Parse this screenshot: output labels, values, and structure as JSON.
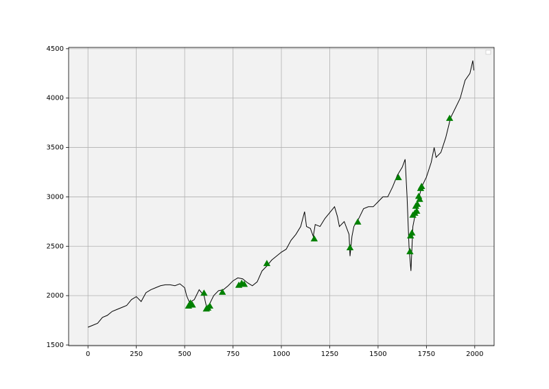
{
  "chart_data": {
    "type": "line",
    "xlim": [
      -100,
      2100
    ],
    "ylim": [
      1493,
      4513
    ],
    "xticks": [
      0,
      250,
      500,
      750,
      1000,
      1250,
      1500,
      1750,
      2000
    ],
    "yticks": [
      1500,
      2000,
      2500,
      3000,
      3500,
      4000,
      4500
    ],
    "grid": true,
    "series": [
      {
        "color": "#000000",
        "x": [
          0,
          25,
          50,
          75,
          100,
          125,
          150,
          175,
          200,
          225,
          250,
          275,
          300,
          325,
          350,
          375,
          400,
          425,
          450,
          475,
          500,
          510,
          525,
          550,
          575,
          600,
          615,
          625,
          650,
          675,
          700,
          725,
          750,
          775,
          800,
          825,
          850,
          875,
          900,
          925,
          950,
          975,
          1000,
          1025,
          1050,
          1075,
          1100,
          1120,
          1130,
          1150,
          1165,
          1175,
          1200,
          1225,
          1250,
          1275,
          1290,
          1300,
          1325,
          1350,
          1355,
          1365,
          1375,
          1400,
          1425,
          1450,
          1475,
          1500,
          1525,
          1550,
          1575,
          1600,
          1625,
          1640,
          1650,
          1660,
          1670,
          1680,
          1700,
          1725,
          1750,
          1775,
          1790,
          1800,
          1825,
          1850,
          1875,
          1900,
          1925,
          1950,
          1975,
          1990,
          1995
        ],
        "values": [
          1680,
          1700,
          1720,
          1780,
          1800,
          1840,
          1860,
          1880,
          1900,
          1960,
          1990,
          1940,
          2030,
          2060,
          2080,
          2100,
          2110,
          2110,
          2100,
          2120,
          2080,
          2000,
          1930,
          1960,
          2060,
          2000,
          1870,
          1900,
          2000,
          2050,
          2060,
          2100,
          2150,
          2180,
          2170,
          2130,
          2100,
          2140,
          2250,
          2300,
          2360,
          2400,
          2440,
          2470,
          2560,
          2620,
          2700,
          2850,
          2700,
          2680,
          2600,
          2720,
          2700,
          2780,
          2840,
          2900,
          2800,
          2700,
          2750,
          2620,
          2400,
          2600,
          2700,
          2780,
          2880,
          2900,
          2900,
          2950,
          3000,
          3000,
          3100,
          3220,
          3300,
          3380,
          3000,
          2500,
          2250,
          2700,
          2900,
          3100,
          3200,
          3350,
          3500,
          3400,
          3450,
          3600,
          3800,
          3900,
          4000,
          4180,
          4250,
          4380,
          4280
        ]
      },
      {
        "color": "#008000",
        "marker": "^",
        "x": [
          520,
          530,
          540,
          600,
          612,
          620,
          630,
          695,
          780,
          795,
          808,
          925,
          1170,
          1355,
          1395,
          1605,
          1665,
          1668,
          1675,
          1680,
          1690,
          1695,
          1700,
          1703,
          1710,
          1715,
          1720,
          1725,
          1870
        ],
        "values": [
          1890,
          1920,
          1900,
          2020,
          1860,
          1870,
          1890,
          2030,
          2100,
          2120,
          2110,
          2320,
          2570,
          2480,
          2740,
          3190,
          2440,
          2600,
          2630,
          2810,
          2830,
          2900,
          2850,
          2920,
          3000,
          2970,
          3080,
          3100,
          3790
        ]
      }
    ]
  }
}
